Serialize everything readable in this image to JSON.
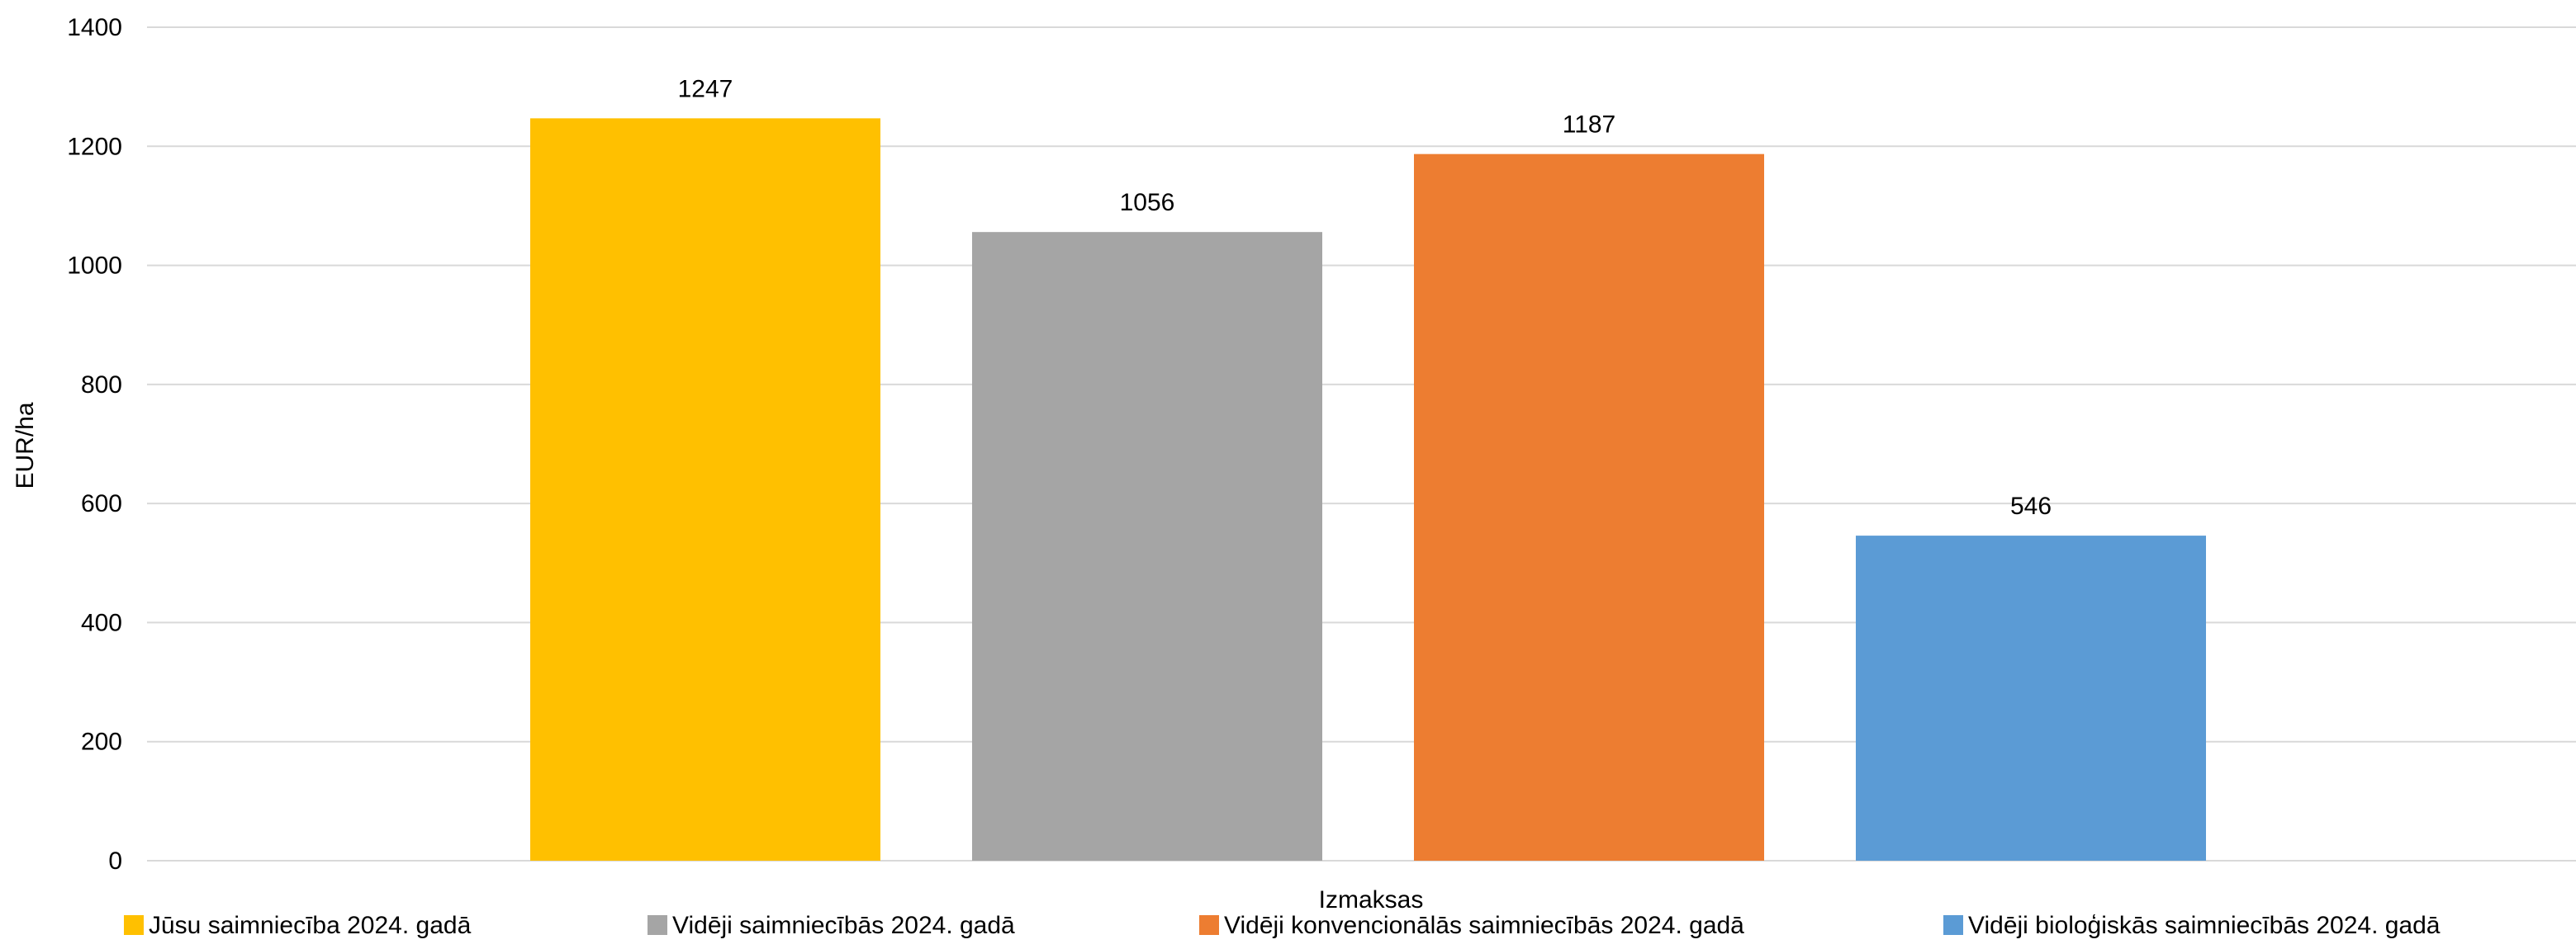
{
  "chart_data": {
    "type": "bar",
    "title": "",
    "xlabel": "Izmaksas",
    "ylabel": "EUR/ha",
    "ylim": [
      0,
      1400
    ],
    "ytick_step": 200,
    "grid": true,
    "legend_position": "bottom",
    "categories": [
      "Izmaksas"
    ],
    "series": [
      {
        "name": "Jūsu saimniecība 2024. gadā",
        "values": [
          1247
        ],
        "color": "#FFC000"
      },
      {
        "name": "Vidēji saimniecībās 2024. gadā",
        "values": [
          1056
        ],
        "color": "#A5A5A5"
      },
      {
        "name": "Vidēji konvencionālās saimniecībās 2024. gadā",
        "values": [
          1187
        ],
        "color": "#ED7D31"
      },
      {
        "name": "Vidēji bioloģiskās saimniecībās 2024. gadā",
        "values": [
          546
        ],
        "color": "#5B9BD5"
      }
    ]
  }
}
